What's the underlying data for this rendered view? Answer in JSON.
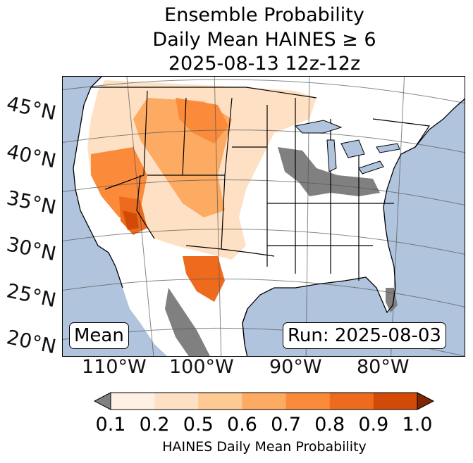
{
  "title": {
    "line1": "Ensemble Probability",
    "line2": "Daily Mean HAINES ≥ 6",
    "line3": "2025-08-13 12z-12z"
  },
  "map": {
    "lat_labels": [
      "45°N",
      "40°N",
      "35°N",
      "30°N",
      "25°N",
      "20°N"
    ],
    "lon_labels": [
      "110°W",
      "100°W",
      "90°W",
      "80°W"
    ],
    "stat_label": "Mean",
    "run_label": "Run: 2025-08-03",
    "colors": {
      "ocean": "#b0c4de",
      "land": "#ffffff",
      "missing": "#808080",
      "borders": "#000000",
      "grid": "#555555"
    }
  },
  "colorbar": {
    "ticks": [
      "0.1",
      "0.2",
      "0.5",
      "0.6",
      "0.7",
      "0.8",
      "0.9",
      "1.0"
    ],
    "colors": [
      "#fef1e3",
      "#fee1c4",
      "#fdca93",
      "#fdaa63",
      "#fb8b3b",
      "#ee6b1d",
      "#d24a08"
    ],
    "under_color": "#808080",
    "over_color": "#7f2704",
    "label": "HAINES Daily Mean Probability"
  }
}
